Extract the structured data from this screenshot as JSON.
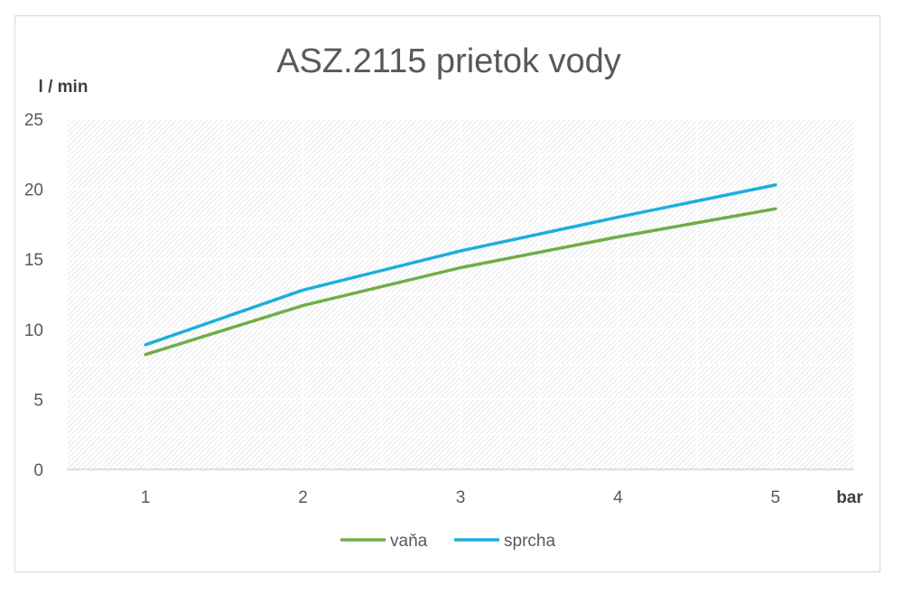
{
  "chart_data": {
    "type": "line",
    "title": "ASZ.2115 prietok vody",
    "ylabel": "l / min",
    "xlabel": "bar",
    "categories": [
      "1",
      "2",
      "3",
      "4",
      "5"
    ],
    "y_ticks": [
      "0",
      "5",
      "10",
      "15",
      "20",
      "25"
    ],
    "ylim": [
      0,
      25
    ],
    "grid": true,
    "legend_position": "bottom",
    "series": [
      {
        "name": "vaňa",
        "color": "#70ad47",
        "values": [
          8.2,
          11.7,
          14.4,
          16.6,
          18.6
        ]
      },
      {
        "name": "sprcha",
        "color": "#1eaedb",
        "values": [
          8.9,
          12.8,
          15.6,
          18.0,
          20.3
        ]
      }
    ]
  }
}
